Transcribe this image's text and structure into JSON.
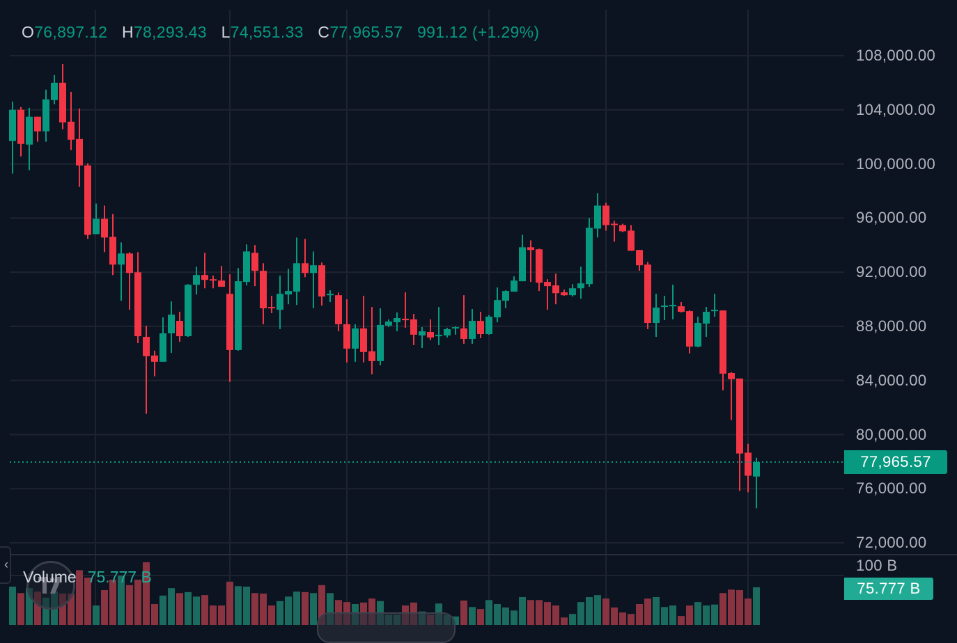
{
  "legend": {
    "open_label": "O",
    "open": "76,897.12",
    "high_label": "H",
    "high": "78,293.43",
    "low_label": "L",
    "low": "74,551.33",
    "close_label": "C",
    "close": "77,965.57",
    "change": "991.12 (+1.29%)"
  },
  "volume_legend": {
    "label": "Volume",
    "value": "75.777 B"
  },
  "price_axis": {
    "ticks": [
      "108,000.00",
      "104,000.00",
      "100,000.00",
      "96,000.00",
      "92,000.00",
      "88,000.00",
      "84,000.00",
      "80,000.00",
      "76,000.00",
      "72,000.00"
    ],
    "current_price": "77,965.57"
  },
  "volume_axis": {
    "tick": "100 B",
    "current_volume": "75.777 B"
  },
  "colors": {
    "up": "#089981",
    "down": "#f23645",
    "up_volume": "#1b6b5f",
    "down_volume": "#8a3441",
    "background": "#0d1421",
    "grid": "#1e2330"
  },
  "icons": {
    "logo": "tradingview-logo",
    "side_tab": "chevron-left-icon"
  },
  "chart_data": {
    "type": "candlestick",
    "ylim": [
      72000,
      108000
    ],
    "yticks": [
      108000,
      104000,
      100000,
      96000,
      92000,
      88000,
      84000,
      80000,
      76000,
      72000
    ],
    "grid": true,
    "last_price": 77965.57,
    "candles_ohlc": [
      [
        101690,
        104610,
        99280,
        104000
      ],
      [
        104000,
        104200,
        100560,
        101480
      ],
      [
        101430,
        104150,
        99540,
        103490
      ],
      [
        103490,
        103490,
        101640,
        102410
      ],
      [
        102410,
        105490,
        101640,
        104770
      ],
      [
        104720,
        106560,
        104410,
        106000
      ],
      [
        106000,
        107380,
        102560,
        103070
      ],
      [
        103120,
        105330,
        101020,
        101790
      ],
      [
        101840,
        104100,
        98300,
        99890
      ],
      [
        99890,
        100050,
        94460,
        94760
      ],
      [
        94810,
        97070,
        94810,
        95940
      ],
      [
        95940,
        96920,
        93480,
        94560
      ],
      [
        94610,
        96300,
        91790,
        92560
      ],
      [
        92560,
        94200,
        89890,
        93380
      ],
      [
        93380,
        93480,
        89220,
        91940
      ],
      [
        91990,
        93480,
        86760,
        87270
      ],
      [
        87220,
        88040,
        81530,
        85790
      ],
      [
        85840,
        86200,
        84300,
        85380
      ],
      [
        85380,
        88660,
        85380,
        87480
      ],
      [
        87480,
        89840,
        86040,
        88860
      ],
      [
        88400,
        89070,
        86860,
        87270
      ],
      [
        87270,
        91120,
        87220,
        91070
      ],
      [
        91070,
        92400,
        90350,
        91790
      ],
      [
        91790,
        93430,
        90810,
        91430
      ],
      [
        91480,
        91740,
        90810,
        91380
      ],
      [
        91380,
        92460,
        90920,
        90920
      ],
      [
        90400,
        91840,
        83890,
        86250
      ],
      [
        86250,
        92300,
        86200,
        91330
      ],
      [
        91280,
        94050,
        91020,
        93530
      ],
      [
        93430,
        94000,
        90970,
        92100
      ],
      [
        92100,
        92660,
        88150,
        89330
      ],
      [
        89430,
        90250,
        88970,
        89330
      ],
      [
        89220,
        91740,
        87790,
        90400
      ],
      [
        90350,
        92250,
        89630,
        90610
      ],
      [
        90560,
        94560,
        89580,
        92660
      ],
      [
        92660,
        94460,
        91630,
        91940
      ],
      [
        91940,
        93530,
        89330,
        92510
      ],
      [
        92510,
        92710,
        89530,
        90200
      ],
      [
        90300,
        90660,
        89790,
        90400
      ],
      [
        90300,
        90500,
        87630,
        88150
      ],
      [
        88150,
        89990,
        85330,
        86350
      ],
      [
        86350,
        88150,
        85380,
        87840
      ],
      [
        87840,
        90250,
        85330,
        86100
      ],
      [
        86150,
        89430,
        84450,
        85430
      ],
      [
        85430,
        89330,
        85120,
        88100
      ],
      [
        88050,
        88510,
        87940,
        88350
      ],
      [
        88300,
        89020,
        87630,
        88610
      ],
      [
        88560,
        90510,
        87890,
        88450
      ],
      [
        88510,
        88920,
        86610,
        87380
      ],
      [
        87320,
        87940,
        86400,
        87630
      ],
      [
        87580,
        88510,
        86970,
        87170
      ],
      [
        87270,
        89430,
        86610,
        87370
      ],
      [
        87320,
        87890,
        87170,
        87790
      ],
      [
        87840,
        87990,
        87380,
        87940
      ],
      [
        87840,
        90300,
        86710,
        87070
      ],
      [
        87070,
        89280,
        86710,
        88400
      ],
      [
        88400,
        89070,
        87120,
        87430
      ],
      [
        87430,
        88820,
        87380,
        88710
      ],
      [
        88660,
        90870,
        88300,
        89940
      ],
      [
        89890,
        90660,
        89330,
        90610
      ],
      [
        90560,
        91690,
        90560,
        91380
      ],
      [
        91330,
        94760,
        91330,
        93840
      ],
      [
        93840,
        94350,
        91280,
        93640
      ],
      [
        93690,
        93740,
        90610,
        91220
      ],
      [
        91280,
        91480,
        89220,
        90970
      ],
      [
        91020,
        91890,
        89630,
        90450
      ],
      [
        90510,
        90710,
        90250,
        90300
      ],
      [
        90300,
        91120,
        90200,
        90810
      ],
      [
        90810,
        92400,
        90040,
        91170
      ],
      [
        91120,
        96000,
        90920,
        95280
      ],
      [
        95220,
        97840,
        94560,
        96920
      ],
      [
        96920,
        97120,
        95070,
        95480
      ],
      [
        95580,
        95790,
        94250,
        95480
      ],
      [
        95480,
        95580,
        94970,
        95020
      ],
      [
        95070,
        95480,
        93580,
        93580
      ],
      [
        93640,
        93640,
        92100,
        92510
      ],
      [
        92560,
        92760,
        87790,
        88250
      ],
      [
        88250,
        90400,
        87220,
        89380
      ],
      [
        89430,
        90250,
        88460,
        89530
      ],
      [
        89480,
        91070,
        88510,
        89580
      ],
      [
        89480,
        89790,
        89020,
        89070
      ],
      [
        89120,
        89170,
        85990,
        86500
      ],
      [
        86500,
        88710,
        86450,
        88250
      ],
      [
        88200,
        89430,
        87220,
        89070
      ],
      [
        89120,
        90400,
        88710,
        89220
      ],
      [
        89170,
        89170,
        83270,
        84500
      ],
      [
        84550,
        84610,
        81070,
        84090
      ],
      [
        84140,
        84140,
        75830,
        78600
      ],
      [
        78660,
        79320,
        75730,
        76960
      ],
      [
        76897.12,
        78293.43,
        74551.33,
        77965.57
      ]
    ],
    "volume_unit": "B",
    "volume": [
      77,
      64,
      74,
      67,
      55,
      67,
      63,
      63,
      110,
      95,
      39,
      70,
      91,
      99,
      80,
      91,
      126,
      42,
      59,
      74,
      64,
      66,
      57,
      60,
      39,
      39,
      87,
      78,
      77,
      64,
      63,
      39,
      48,
      57,
      67,
      66,
      64,
      80,
      64,
      50,
      46,
      42,
      45,
      53,
      48,
      20,
      20,
      39,
      45,
      27,
      20,
      43,
      20,
      17,
      49,
      36,
      32,
      50,
      42,
      35,
      29,
      56,
      50,
      50,
      46,
      39,
      15,
      22,
      46,
      56,
      60,
      53,
      35,
      25,
      22,
      42,
      53,
      56,
      36,
      39,
      18,
      39,
      46,
      39,
      41,
      64,
      71,
      70,
      53,
      75.777
    ]
  }
}
